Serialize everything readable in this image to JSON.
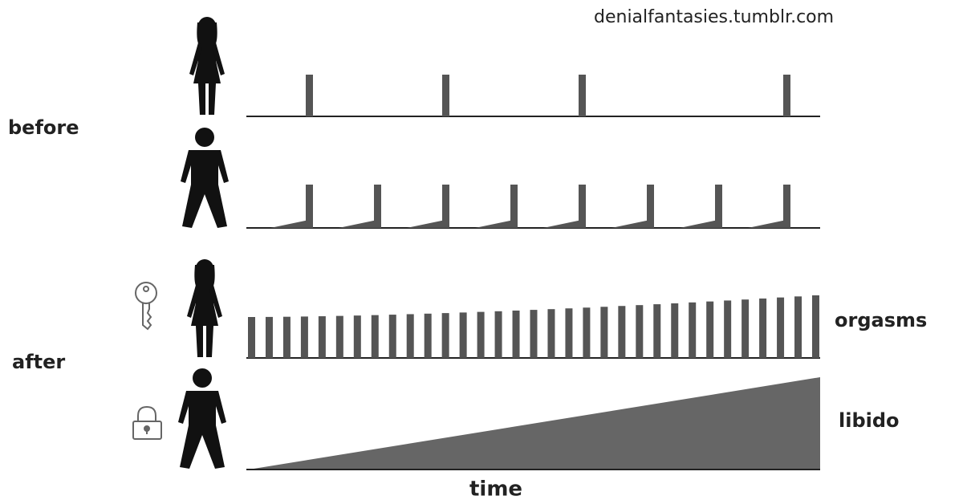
{
  "watermark": "denialfantasies.tumblr.com",
  "sections": [
    {
      "label": "before"
    },
    {
      "label": "after"
    }
  ],
  "row_labels": [
    "orgasms",
    "libido"
  ],
  "x_axis_label": "time"
}
